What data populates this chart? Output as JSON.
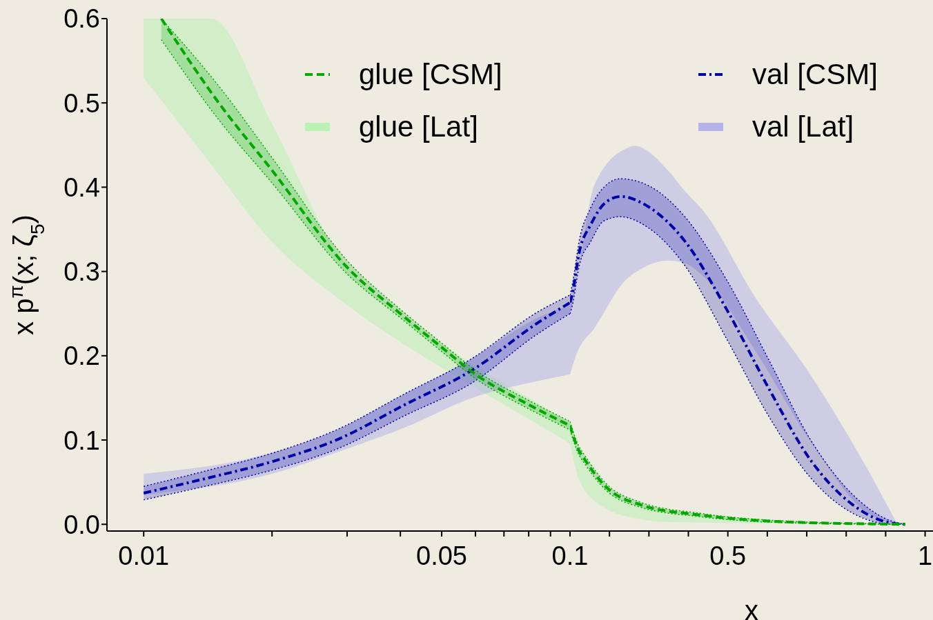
{
  "chart_data": [
    {
      "type": "line",
      "ylabel": "x p$^{π}$(x; ζ$_{5}$)",
      "log": "x",
      "xlim": [
        0.0082,
        0.1
      ],
      "ylim": [
        -0.008,
        0.6
      ],
      "xticks": [
        0.01,
        {
          "value": 0.02,
          "label": null
        },
        {
          "value": 0.03,
          "label": null
        },
        {
          "value": 0.04,
          "label": null
        },
        0.05,
        {
          "value": 0.06,
          "label": null
        },
        {
          "value": 0.07,
          "label": null
        },
        {
          "value": 0.08,
          "label": null
        },
        {
          "value": 0.09,
          "label": null
        },
        0.1
      ],
      "yticks": [
        {
          "value": 0,
          "label": "0.0"
        },
        0.1,
        0.2,
        0.3,
        0.4,
        0.5,
        0.6
      ],
      "legend": "top right",
      "series": [
        {
          "name": "glue [Lat]",
          "type": "area",
          "color": "#b9f0b4",
          "x": [
            0.01,
            0.0144,
            0.02,
            0.0286,
            0.041,
            0.059,
            0.08,
            0.1
          ],
          "values": [
            null,
            null,
            null,
            null,
            null,
            null,
            null,
            null
          ],
          "lower": [
            0.53,
            0.427,
            0.335,
            0.268,
            0.213,
            0.164,
            0.125,
            0.096
          ],
          "upper": [
            0.6,
            0.6,
            0.475,
            0.32,
            0.245,
            0.19,
            0.15,
            0.12
          ]
        },
        {
          "type": "area",
          "color": "#b4b4e6",
          "x": [
            0.01,
            0.02,
            0.0286,
            0.041,
            0.059,
            0.084,
            0.1
          ],
          "values": [
            null,
            null,
            null,
            null,
            null,
            null,
            null
          ],
          "lower": [
            0.035,
            0.06,
            0.086,
            0.115,
            0.15,
            0.17,
            0.178
          ],
          "upper": [
            0.06,
            0.085,
            0.113,
            0.155,
            0.197,
            0.245,
            0.26
          ]
        },
        {
          "line_style": "dashdot",
          "color": "#0000a8",
          "x": [
            0.01,
            0.0139,
            0.0199,
            0.0286,
            0.041,
            0.059,
            0.084,
            0.1
          ],
          "values": [
            0.037,
            0.054,
            0.074,
            0.101,
            0.142,
            0.183,
            0.239,
            0.263
          ],
          "lower": [
            0.029,
            0.045,
            0.064,
            0.09,
            0.129,
            0.168,
            0.226,
            0.25
          ],
          "upper": [
            0.045,
            0.063,
            0.084,
            0.113,
            0.155,
            0.197,
            0.252,
            0.272
          ]
        },
        {
          "line_style": "dotted",
          "color": "#0000a8",
          "x": [
            0.01,
            0.0139,
            0.0199,
            0.0286,
            0.041,
            0.059,
            0.084,
            0.1
          ],
          "values": [
            0.029,
            0.045,
            0.064,
            0.09,
            0.129,
            0.168,
            0.226,
            0.25
          ]
        },
        {
          "line_style": "dotted",
          "color": "#0000a8",
          "x": [
            0.01,
            0.0139,
            0.0199,
            0.0286,
            0.041,
            0.059,
            0.084,
            0.1
          ],
          "values": [
            0.045,
            0.063,
            0.084,
            0.113,
            0.155,
            0.197,
            0.252,
            0.272
          ]
        },
        {
          "name": "glue [CSM]",
          "line_style": "dashed",
          "color": "#00a800",
          "x": [
            0.011,
            0.015,
            0.02,
            0.03,
            0.04,
            0.05,
            0.06,
            0.08,
            0.1
          ],
          "values": [
            0.6,
            0.5,
            0.42,
            0.305,
            0.25,
            0.21,
            0.178,
            0.142,
            0.117
          ],
          "lower": [
            0.575,
            0.48,
            0.405,
            0.297,
            0.245,
            0.205,
            0.173,
            0.137,
            0.112
          ],
          "upper": [
            0.6,
            0.52,
            0.435,
            0.313,
            0.255,
            0.215,
            0.183,
            0.147,
            0.122
          ]
        },
        {
          "line_style": "dotted",
          "color": "#00a800",
          "x": [
            0.011,
            0.015,
            0.02,
            0.03,
            0.04,
            0.05,
            0.06,
            0.08,
            0.1
          ],
          "values": [
            0.575,
            0.48,
            0.405,
            0.297,
            0.245,
            0.205,
            0.173,
            0.137,
            0.112
          ]
        },
        {
          "line_style": "dotted",
          "color": "#00a800",
          "x": [
            0.011,
            0.015,
            0.02,
            0.03,
            0.04,
            0.05,
            0.06,
            0.08,
            0.1
          ],
          "values": [
            0.6,
            0.52,
            0.435,
            0.313,
            0.255,
            0.215,
            0.183,
            0.147,
            0.122
          ]
        }
      ]
    },
    {
      "type": "line",
      "xlabel": "x",
      "tick_labels": "x",
      "xlim": [
        0.1,
        1.02
      ],
      "ylim": [
        -0.008,
        0.6
      ],
      "xticks": [
        {
          "value": 0.2,
          "label": null
        },
        {
          "value": 0.3,
          "label": null
        },
        {
          "value": 0.4,
          "label": null
        },
        0.5,
        {
          "value": 0.6,
          "label": null
        },
        {
          "value": 0.7,
          "label": null
        },
        {
          "value": 0.8,
          "label": null
        },
        {
          "value": 0.9,
          "label": null
        },
        1
      ],
      "legend": "top",
      "series": [
        {
          "type": "area",
          "color": "#b9f0b4",
          "x": [
            0.1,
            0.124,
            0.186,
            0.28,
            0.33,
            0.43,
            0.64,
            0.95
          ],
          "values": [
            null,
            null,
            null,
            null,
            null,
            null,
            null,
            null
          ],
          "lower": [
            0.096,
            0.052,
            0.02,
            0.006,
            0.003,
            0.002,
            0.001,
            0
          ],
          "upper": [
            0.12,
            0.085,
            0.045,
            0.022,
            0.018,
            0.012,
            0.004,
            0
          ]
        },
        {
          "name": "val [Lat]",
          "type": "area",
          "color": "#b4b4e6",
          "x": [
            0.1,
            0.115,
            0.162,
            0.248,
            0.263,
            0.348,
            0.39,
            0.441,
            0.567,
            0.71,
            0.852,
            0.93
          ],
          "values": [
            null,
            null,
            null,
            null,
            null,
            null,
            null,
            null,
            null,
            null,
            null,
            null
          ],
          "lower": [
            0.178,
            0.2,
            0.233,
            0.293,
            0.298,
            0.313,
            0.31,
            0.293,
            0.208,
            0.098,
            0.014,
            0
          ],
          "upper": [
            0.26,
            0.286,
            0.403,
            0.447,
            0.449,
            0.42,
            0.396,
            0.37,
            0.271,
            0.177,
            0.067,
            0
          ]
        },
        {
          "name": "val [CSM]",
          "line_style": "dashdot",
          "color": "#0000a8",
          "x": [
            0.1,
            0.106,
            0.124,
            0.152,
            0.186,
            0.228,
            0.298,
            0.391,
            0.497,
            0.604,
            0.71,
            0.817,
            0.92,
            0.95
          ],
          "values": [
            0.263,
            0.274,
            0.324,
            0.355,
            0.38,
            0.389,
            0.377,
            0.336,
            0.255,
            0.161,
            0.076,
            0.023,
            0.001,
            0
          ],
          "lower": [
            0.25,
            0.26,
            0.308,
            0.335,
            0.36,
            0.365,
            0.352,
            0.307,
            0.22,
            0.128,
            0.055,
            0.013,
            0,
            0
          ],
          "upper": [
            0.272,
            0.285,
            0.338,
            0.375,
            0.4,
            0.41,
            0.402,
            0.365,
            0.29,
            0.195,
            0.1,
            0.035,
            0.003,
            0
          ]
        },
        {
          "line_style": "dotted",
          "color": "#0000a8",
          "x": [
            0.1,
            0.106,
            0.124,
            0.152,
            0.186,
            0.228,
            0.298,
            0.391,
            0.497,
            0.604,
            0.71,
            0.817,
            0.92,
            0.95
          ],
          "values": [
            0.25,
            0.26,
            0.308,
            0.335,
            0.36,
            0.365,
            0.352,
            0.307,
            0.22,
            0.128,
            0.055,
            0.013,
            0,
            0
          ]
        },
        {
          "line_style": "dotted",
          "color": "#0000a8",
          "x": [
            0.1,
            0.106,
            0.124,
            0.152,
            0.186,
            0.228,
            0.298,
            0.391,
            0.497,
            0.604,
            0.71,
            0.817,
            0.92,
            0.95
          ],
          "values": [
            0.272,
            0.285,
            0.338,
            0.375,
            0.4,
            0.41,
            0.402,
            0.365,
            0.29,
            0.195,
            0.1,
            0.035,
            0.003,
            0
          ]
        },
        {
          "line_style": "dashed",
          "color": "#00a800",
          "x": [
            0.1,
            0.12,
            0.14,
            0.19,
            0.28,
            0.43,
            0.64,
            0.95
          ],
          "values": [
            0.117,
            0.09,
            0.075,
            0.045,
            0.023,
            0.011,
            0.003,
            0
          ],
          "lower": [
            0.112,
            0.085,
            0.07,
            0.041,
            0.02,
            0.009,
            0.002,
            0
          ],
          "upper": [
            0.122,
            0.095,
            0.08,
            0.049,
            0.026,
            0.013,
            0.004,
            0
          ]
        },
        {
          "line_style": "dotted",
          "color": "#00a800",
          "x": [
            0.1,
            0.12,
            0.14,
            0.19,
            0.28,
            0.43,
            0.64,
            0.95
          ],
          "values": [
            0.112,
            0.085,
            0.07,
            0.041,
            0.02,
            0.009,
            0.002,
            0
          ]
        },
        {
          "line_style": "dotted",
          "color": "#00a800",
          "x": [
            0.1,
            0.12,
            0.14,
            0.19,
            0.28,
            0.43,
            0.64,
            0.95
          ],
          "values": [
            0.122,
            0.095,
            0.08,
            0.049,
            0.026,
            0.013,
            0.004,
            0
          ]
        }
      ]
    }
  ]
}
